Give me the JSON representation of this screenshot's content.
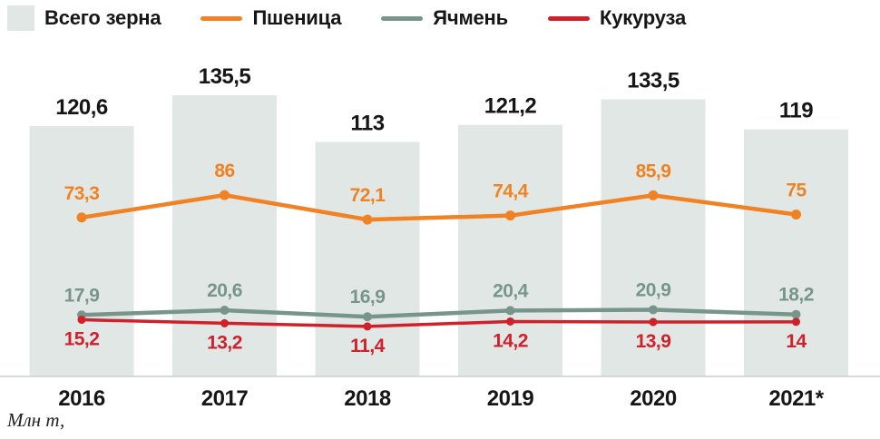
{
  "legend": {
    "position": "top-left",
    "items": [
      {
        "label": "Всего зерна",
        "type": "bar",
        "color": "#e0e7e4"
      },
      {
        "label": "Пшеница",
        "type": "line",
        "color": "#f08223"
      },
      {
        "label": "Ячмень",
        "type": "line",
        "color": "#78958c"
      },
      {
        "label": "Кукуруза",
        "type": "line",
        "color": "#d0202a"
      }
    ]
  },
  "chart_data": {
    "type": "bar+line",
    "categories": [
      "2016",
      "2017",
      "2018",
      "2019",
      "2020",
      "2021*"
    ],
    "series": [
      {
        "name": "Всего зерна",
        "type": "bar",
        "color": "#e0e7e4",
        "values": [
          120.6,
          135.5,
          113,
          121.2,
          133.5,
          119
        ],
        "labels": [
          "120,6",
          "135,5",
          "113",
          "121,2",
          "133,5",
          "119"
        ]
      },
      {
        "name": "Пшеница",
        "type": "line",
        "color": "#f08223",
        "values": [
          73.3,
          86,
          72.1,
          74.4,
          85.9,
          75
        ],
        "labels": [
          "73,3",
          "86",
          "72,1",
          "74,4",
          "85,9",
          "75"
        ]
      },
      {
        "name": "Ячмень",
        "type": "line",
        "color": "#78958c",
        "values": [
          17.9,
          20.6,
          16.9,
          20.4,
          20.9,
          18.2
        ],
        "labels": [
          "17,9",
          "20,6",
          "16,9",
          "20,4",
          "20,9",
          "18,2"
        ]
      },
      {
        "name": "Кукуруза",
        "type": "line",
        "color": "#d0202a",
        "values": [
          15.2,
          13.2,
          11.4,
          14.2,
          13.9,
          14
        ],
        "labels": [
          "15,2",
          "13,2",
          "11,4",
          "14,2",
          "13,9",
          "14"
        ]
      }
    ],
    "title": "",
    "xlabel": "",
    "ylabel": "",
    "unit_label": "Млн т,",
    "ylim": [
      0,
      140
    ],
    "grid": false,
    "legend_position": "top-left"
  }
}
